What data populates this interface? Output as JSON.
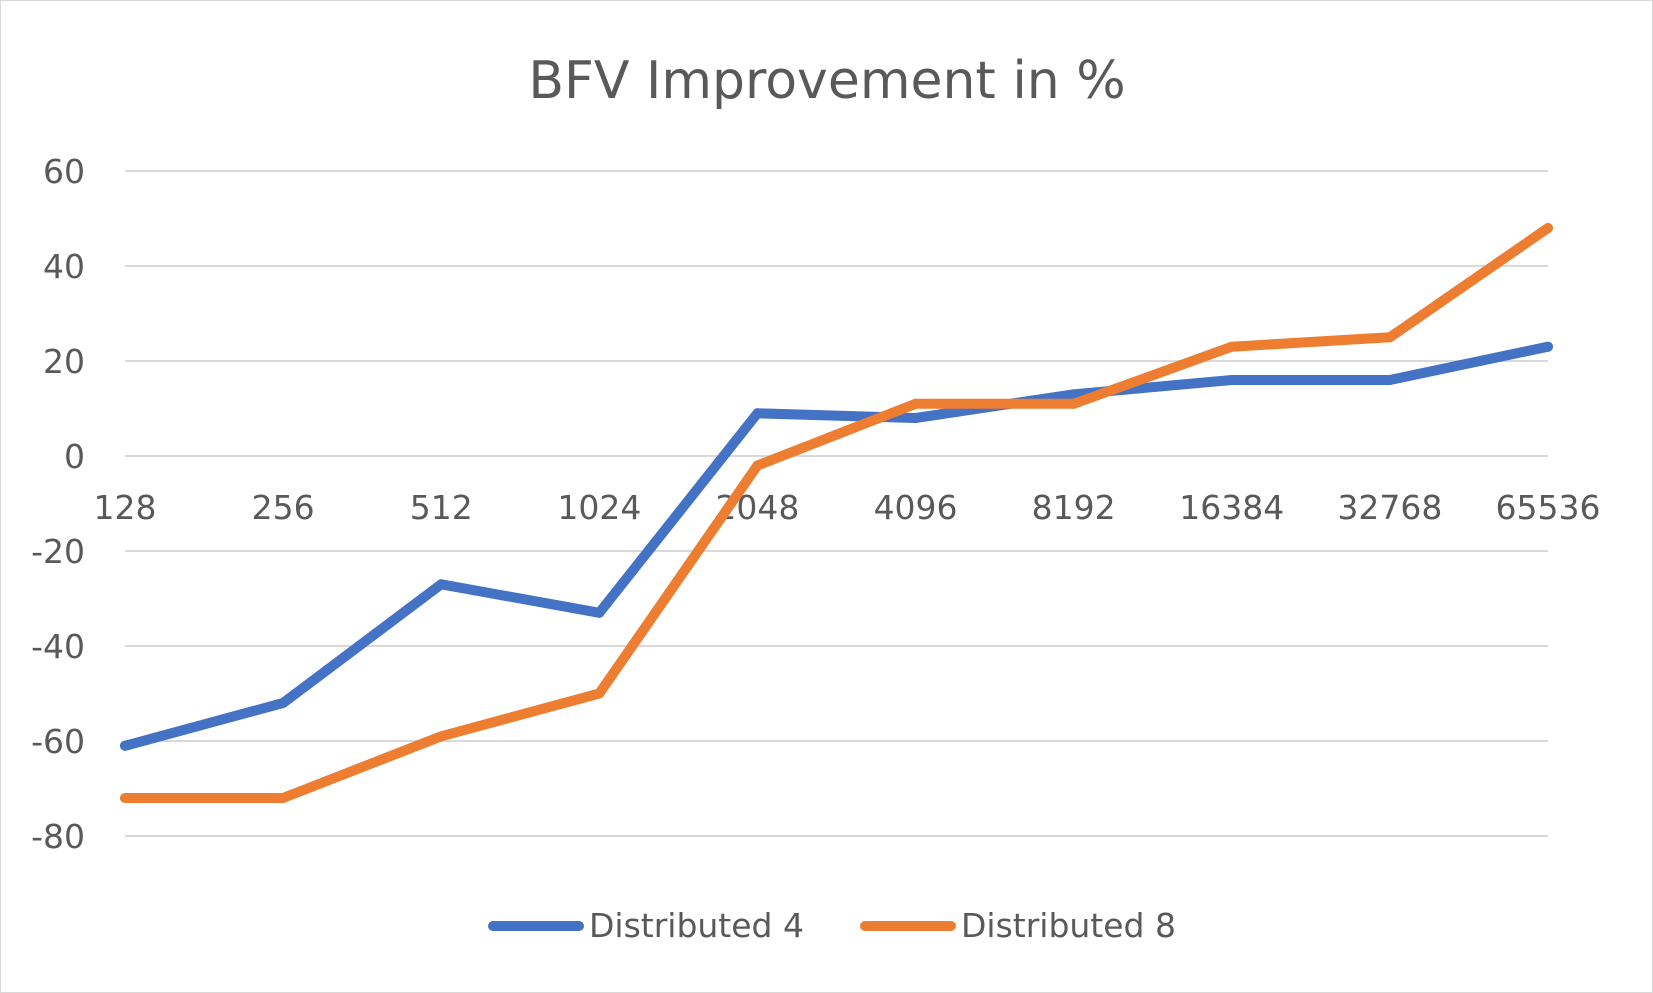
{
  "chart_data": {
    "type": "line",
    "title": "BFV Improvement in %",
    "xlabel": "",
    "ylabel": "",
    "categories": [
      "128",
      "256",
      "512",
      "1024",
      "2048",
      "4096",
      "8192",
      "16384",
      "32768",
      "65536"
    ],
    "series": [
      {
        "name": "Distributed 4",
        "color": "#4472c4",
        "values": [
          -61,
          -52,
          -27,
          -33,
          9,
          8,
          13,
          16,
          16,
          23
        ]
      },
      {
        "name": "Distributed 8",
        "color": "#ed7d31",
        "values": [
          -72,
          -72,
          -59,
          -50,
          -2,
          11,
          11,
          23,
          25,
          48
        ]
      }
    ],
    "ylim": [
      -80,
      60
    ],
    "yticks": [
      "60",
      "40",
      "20",
      "0",
      "-20",
      "-40",
      "-60",
      "-80"
    ],
    "grid": true,
    "legend": "bottom"
  }
}
